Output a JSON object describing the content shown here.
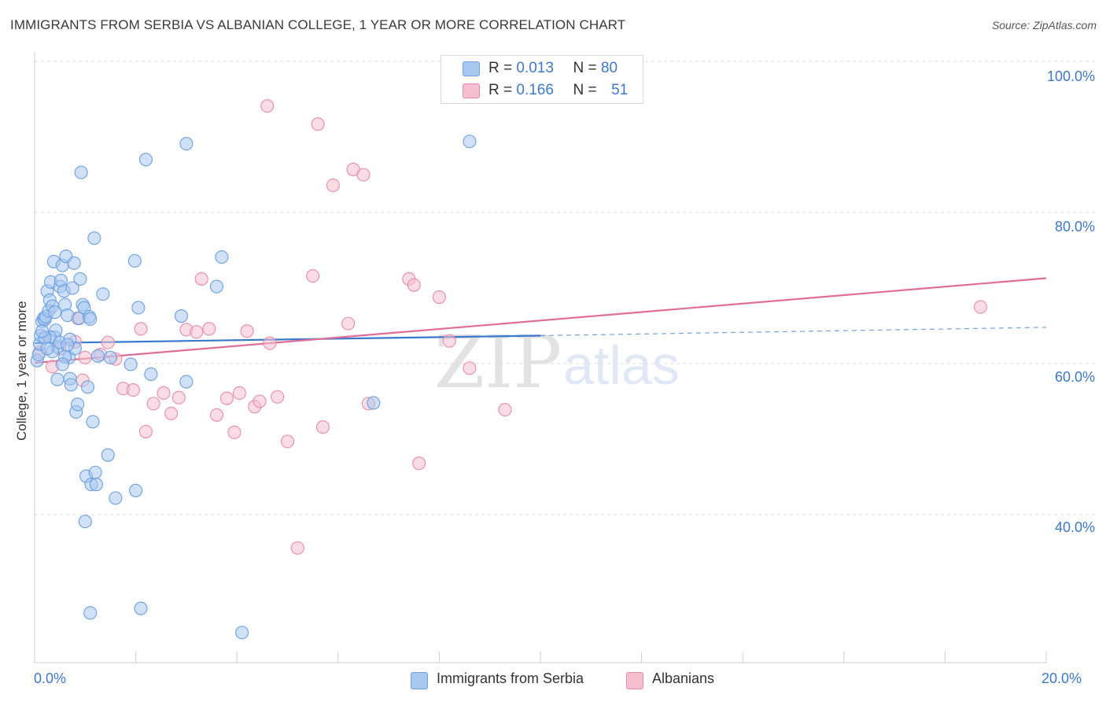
{
  "title": "IMMIGRANTS FROM SERBIA VS ALBANIAN COLLEGE, 1 YEAR OR MORE CORRELATION CHART",
  "source": "Source: ZipAtlas.com",
  "watermark": {
    "zip": "ZIP",
    "atlas": "atlas"
  },
  "legend": {
    "serbia": {
      "r_label": "R =",
      "r_value": "0.013",
      "n_label": "N =",
      "n_value": "80",
      "name": "Immigrants from Serbia"
    },
    "albanian": {
      "r_label": "R =",
      "r_value": "0.166",
      "n_label": "N =",
      "n_value": "51",
      "name": "Albanians"
    }
  },
  "colors": {
    "serbia_fill": "#a9c8f0",
    "serbia_stroke": "#6a9fe0",
    "serbia_line": "#3a78d0",
    "albanian_fill": "#f6bfd0",
    "albanian_stroke": "#e88aa8",
    "albanian_line": "#e06d96",
    "tick_text": "#3d78c9",
    "grid": "#dddddd"
  },
  "chart_data": {
    "type": "scatter",
    "title": "IMMIGRANTS FROM SERBIA VS ALBANIAN COLLEGE, 1 YEAR OR MORE CORRELATION CHART",
    "xlabel": "",
    "ylabel": "College, 1 year or more",
    "xlim": [
      0,
      20
    ],
    "ylim": [
      20,
      105
    ],
    "x_tick_labels": [
      "0.0%",
      "20.0%"
    ],
    "y_tick_labels": [
      "40.0%",
      "60.0%",
      "80.0%",
      "100.0%"
    ],
    "y_ticks": [
      40,
      60,
      80,
      100
    ],
    "grid": true,
    "legend_position": "top-center",
    "series": [
      {
        "name": "Immigrants from Serbia",
        "points": [
          [
            0.05,
            60.4
          ],
          [
            0.08,
            61.2
          ],
          [
            0.1,
            62.6
          ],
          [
            0.12,
            63.7
          ],
          [
            0.15,
            65.6
          ],
          [
            0.18,
            66.0
          ],
          [
            0.2,
            65.8
          ],
          [
            0.22,
            66.2
          ],
          [
            0.25,
            69.6
          ],
          [
            0.28,
            67.0
          ],
          [
            0.3,
            68.4
          ],
          [
            0.32,
            70.8
          ],
          [
            0.35,
            67.6
          ],
          [
            0.38,
            73.5
          ],
          [
            0.4,
            63.5
          ],
          [
            0.42,
            64.4
          ],
          [
            0.45,
            62.2
          ],
          [
            0.5,
            70.2
          ],
          [
            0.52,
            71.0
          ],
          [
            0.55,
            73.0
          ],
          [
            0.58,
            69.6
          ],
          [
            0.6,
            67.8
          ],
          [
            0.62,
            74.2
          ],
          [
            0.65,
            66.4
          ],
          [
            0.68,
            60.8
          ],
          [
            0.7,
            58.0
          ],
          [
            0.72,
            57.2
          ],
          [
            0.75,
            70.0
          ],
          [
            0.78,
            73.3
          ],
          [
            0.8,
            62.0
          ],
          [
            0.82,
            53.6
          ],
          [
            0.85,
            54.6
          ],
          [
            0.88,
            66.0
          ],
          [
            0.9,
            71.2
          ],
          [
            0.92,
            85.3
          ],
          [
            0.95,
            67.8
          ],
          [
            0.98,
            67.4
          ],
          [
            1.0,
            39.1
          ],
          [
            1.02,
            45.1
          ],
          [
            1.05,
            56.9
          ],
          [
            1.08,
            66.2
          ],
          [
            1.1,
            65.9
          ],
          [
            1.12,
            44.0
          ],
          [
            1.15,
            52.3
          ],
          [
            1.18,
            76.6
          ],
          [
            1.2,
            45.6
          ],
          [
            1.22,
            44.0
          ],
          [
            1.35,
            69.2
          ],
          [
            1.45,
            47.9
          ],
          [
            1.5,
            60.8
          ],
          [
            1.6,
            42.2
          ],
          [
            1.9,
            59.9
          ],
          [
            1.98,
            73.6
          ],
          [
            2.0,
            43.2
          ],
          [
            2.05,
            67.4
          ],
          [
            2.1,
            27.6
          ],
          [
            2.2,
            87.0
          ],
          [
            2.3,
            58.6
          ],
          [
            2.9,
            66.3
          ],
          [
            3.0,
            57.6
          ],
          [
            3.0,
            89.1
          ],
          [
            3.6,
            70.2
          ],
          [
            3.7,
            74.1
          ],
          [
            4.1,
            24.4
          ],
          [
            6.7,
            54.8
          ],
          [
            8.6,
            89.4
          ],
          [
            0.3,
            63.5
          ],
          [
            0.4,
            66.8
          ],
          [
            0.6,
            60.9
          ],
          [
            1.1,
            27.0
          ],
          [
            0.2,
            63.4
          ],
          [
            0.35,
            61.6
          ],
          [
            0.5,
            62.8
          ],
          [
            0.45,
            57.9
          ],
          [
            0.7,
            63.2
          ],
          [
            0.15,
            64.3
          ],
          [
            0.25,
            62.0
          ],
          [
            0.55,
            59.9
          ],
          [
            0.65,
            62.5
          ],
          [
            1.25,
            61.0
          ]
        ]
      },
      {
        "name": "Albanians",
        "points": [
          [
            0.1,
            61.5
          ],
          [
            0.2,
            63.5
          ],
          [
            0.35,
            59.6
          ],
          [
            0.5,
            62.0
          ],
          [
            0.8,
            62.9
          ],
          [
            0.85,
            66.0
          ],
          [
            0.95,
            57.8
          ],
          [
            1.0,
            60.8
          ],
          [
            1.3,
            61.2
          ],
          [
            1.45,
            62.8
          ],
          [
            1.6,
            60.6
          ],
          [
            1.75,
            56.7
          ],
          [
            1.95,
            56.5
          ],
          [
            2.1,
            64.6
          ],
          [
            2.2,
            51.0
          ],
          [
            2.35,
            54.7
          ],
          [
            2.55,
            56.1
          ],
          [
            2.7,
            53.4
          ],
          [
            2.85,
            55.5
          ],
          [
            3.0,
            64.5
          ],
          [
            3.2,
            64.2
          ],
          [
            3.3,
            71.2
          ],
          [
            3.45,
            64.6
          ],
          [
            3.6,
            53.2
          ],
          [
            3.8,
            55.4
          ],
          [
            3.95,
            50.9
          ],
          [
            4.05,
            56.1
          ],
          [
            4.2,
            64.3
          ],
          [
            4.35,
            54.3
          ],
          [
            4.45,
            55.0
          ],
          [
            4.6,
            94.1
          ],
          [
            4.65,
            62.7
          ],
          [
            4.8,
            55.6
          ],
          [
            5.0,
            49.7
          ],
          [
            5.2,
            35.6
          ],
          [
            5.5,
            71.6
          ],
          [
            5.6,
            91.7
          ],
          [
            5.7,
            51.6
          ],
          [
            5.9,
            83.6
          ],
          [
            6.2,
            65.3
          ],
          [
            6.3,
            85.7
          ],
          [
            6.5,
            85.0
          ],
          [
            6.6,
            54.7
          ],
          [
            7.4,
            71.2
          ],
          [
            7.5,
            70.4
          ],
          [
            7.6,
            46.8
          ],
          [
            8.0,
            68.8
          ],
          [
            8.2,
            63.0
          ],
          [
            8.6,
            59.4
          ],
          [
            9.3,
            53.9
          ],
          [
            18.7,
            67.5
          ]
        ]
      }
    ],
    "trendlines": [
      {
        "name": "Immigrants from Serbia",
        "x": [
          0,
          10
        ],
        "y": [
          62.7,
          63.7
        ],
        "dashed_extension_to": 20,
        "dashed_y_end": 64.8
      },
      {
        "name": "Albanians",
        "x": [
          0,
          20
        ],
        "y": [
          60.1,
          71.3
        ]
      }
    ]
  }
}
